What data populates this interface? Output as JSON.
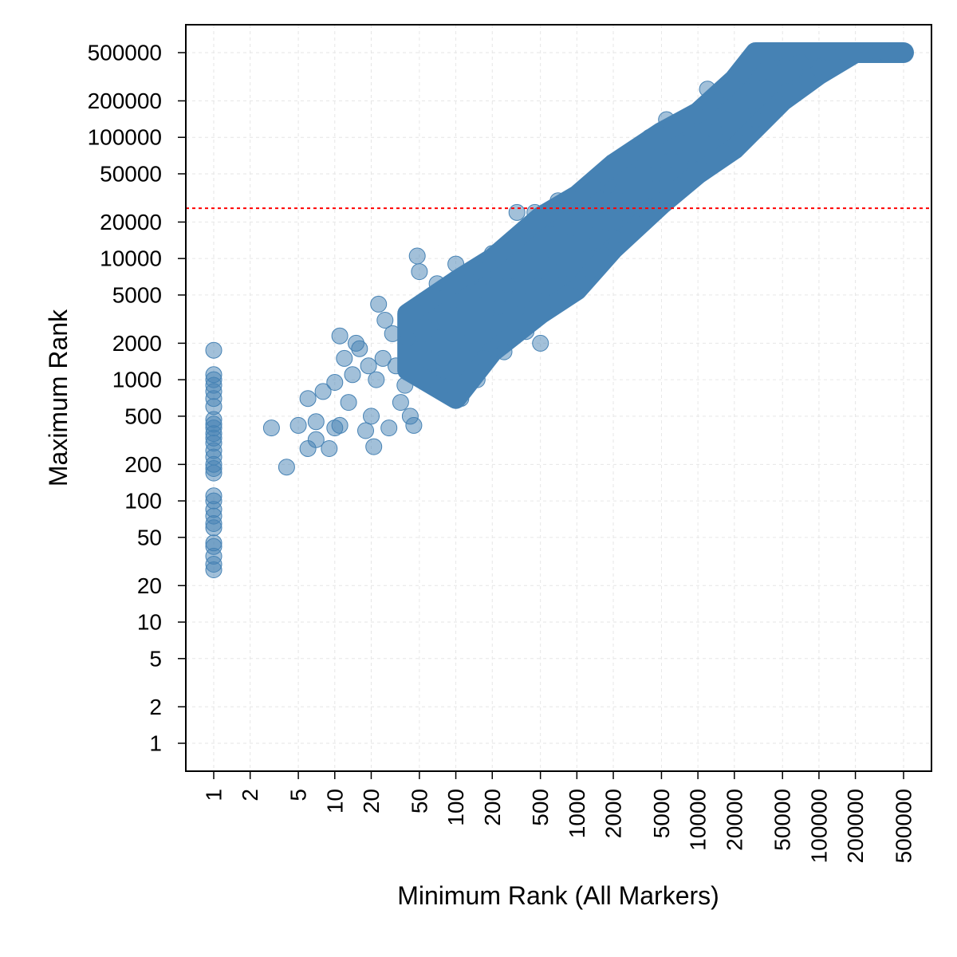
{
  "chart_data": {
    "type": "scatter",
    "title": "",
    "xlabel": "Minimum Rank (All Markers)",
    "ylabel": "Maximum Rank",
    "x_scale": "log",
    "y_scale": "log",
    "xlim": [
      0.8,
      750000
    ],
    "ylim": [
      0.5,
      800000
    ],
    "grid": true,
    "legend": "none",
    "x_ticks": [
      1,
      2,
      5,
      10,
      20,
      50,
      100,
      200,
      500,
      1000,
      2000,
      5000,
      10000,
      20000,
      50000,
      100000,
      200000,
      500000
    ],
    "x_tick_labels": [
      "1",
      "2",
      "5",
      "10",
      "20",
      "50",
      "100",
      "200",
      "500",
      "1000",
      "2000",
      "5000",
      "10000",
      "20000",
      "50000",
      "100000",
      "200000",
      "500000"
    ],
    "y_ticks": [
      1,
      2,
      5,
      10,
      20,
      50,
      100,
      200,
      500,
      1000,
      2000,
      5000,
      10000,
      20000,
      50000,
      100000,
      200000,
      500000
    ],
    "y_tick_labels": [
      "1",
      "2",
      "5",
      "10",
      "20",
      "50",
      "100",
      "200",
      "500",
      "1000",
      "2000",
      "5000",
      "10000",
      "20000",
      "50000",
      "100000",
      "200000",
      "500000"
    ],
    "point_color": "#4682b4",
    "reference_line": {
      "orientation": "horizontal",
      "y": 26000,
      "color": "#ff0000",
      "style": "dotted"
    },
    "series": [
      {
        "points": [
          [
            1,
            27
          ],
          [
            1,
            30
          ],
          [
            1,
            35
          ],
          [
            1,
            42
          ],
          [
            1,
            45
          ],
          [
            1,
            60
          ],
          [
            1,
            65
          ],
          [
            1,
            75
          ],
          [
            1,
            85
          ],
          [
            1,
            100
          ],
          [
            1,
            110
          ],
          [
            1,
            170
          ],
          [
            1,
            185
          ],
          [
            1,
            200
          ],
          [
            1,
            230
          ],
          [
            1,
            260
          ],
          [
            1,
            300
          ],
          [
            1,
            330
          ],
          [
            1,
            360
          ],
          [
            1,
            400
          ],
          [
            1,
            430
          ],
          [
            1,
            470
          ],
          [
            1,
            600
          ],
          [
            1,
            700
          ],
          [
            1,
            800
          ],
          [
            1,
            900
          ],
          [
            1,
            1000
          ],
          [
            1,
            1100
          ],
          [
            1,
            1750
          ],
          [
            3,
            400
          ],
          [
            4,
            190
          ],
          [
            5,
            420
          ],
          [
            6,
            270
          ],
          [
            6,
            700
          ],
          [
            7,
            320
          ],
          [
            7,
            450
          ],
          [
            8,
            800
          ],
          [
            9,
            270
          ],
          [
            10,
            400
          ],
          [
            10,
            950
          ],
          [
            11,
            420
          ],
          [
            11,
            2300
          ],
          [
            12,
            1500
          ],
          [
            13,
            650
          ],
          [
            14,
            1100
          ],
          [
            15,
            2000
          ],
          [
            16,
            1800
          ],
          [
            18,
            380
          ],
          [
            19,
            1300
          ],
          [
            20,
            500
          ],
          [
            21,
            280
          ],
          [
            22,
            1000
          ],
          [
            23,
            4200
          ],
          [
            25,
            1500
          ],
          [
            26,
            3100
          ],
          [
            28,
            400
          ],
          [
            30,
            2400
          ],
          [
            32,
            1300
          ],
          [
            35,
            650
          ],
          [
            38,
            900
          ],
          [
            40,
            2200
          ],
          [
            42,
            500
          ],
          [
            45,
            420
          ],
          [
            48,
            10500
          ],
          [
            50,
            7800
          ],
          [
            52,
            1800
          ],
          [
            55,
            3600
          ],
          [
            58,
            1000
          ],
          [
            60,
            2600
          ],
          [
            65,
            1400
          ],
          [
            70,
            6200
          ],
          [
            75,
            3000
          ],
          [
            80,
            2200
          ],
          [
            90,
            900
          ],
          [
            95,
            4500
          ],
          [
            100,
            9000
          ],
          [
            110,
            700
          ],
          [
            120,
            2000
          ],
          [
            130,
            6500
          ],
          [
            140,
            3500
          ],
          [
            150,
            1000
          ],
          [
            160,
            5500
          ],
          [
            170,
            1500
          ],
          [
            180,
            8000
          ],
          [
            190,
            3000
          ],
          [
            200,
            11000
          ],
          [
            210,
            1800
          ],
          [
            230,
            4000
          ],
          [
            250,
            1700
          ],
          [
            270,
            6000
          ],
          [
            300,
            2300
          ],
          [
            320,
            24000
          ],
          [
            350,
            4500
          ],
          [
            380,
            2500
          ],
          [
            400,
            12000
          ],
          [
            420,
            3800
          ],
          [
            450,
            24000
          ],
          [
            480,
            6000
          ],
          [
            500,
            2000
          ],
          [
            550,
            9000
          ],
          [
            600,
            16000
          ],
          [
            650,
            4500
          ],
          [
            700,
            30000
          ],
          [
            750,
            8000
          ],
          [
            800,
            5200
          ],
          [
            900,
            18000
          ],
          [
            1000,
            6500
          ],
          [
            1100,
            32000
          ],
          [
            1200,
            13000
          ],
          [
            1300,
            8000
          ],
          [
            1500,
            20000
          ],
          [
            1600,
            11000
          ],
          [
            1800,
            40000
          ],
          [
            2000,
            15000
          ],
          [
            2200,
            30000
          ],
          [
            2500,
            18000
          ],
          [
            2800,
            65000
          ],
          [
            3000,
            25000
          ],
          [
            3500,
            35000
          ],
          [
            4000,
            100000
          ],
          [
            4500,
            50000
          ],
          [
            5000,
            30000
          ],
          [
            5500,
            140000
          ],
          [
            6000,
            65000
          ],
          [
            7000,
            40000
          ],
          [
            8000,
            90000
          ],
          [
            9000,
            55000
          ],
          [
            10000,
            150000
          ],
          [
            11000,
            70000
          ],
          [
            12000,
            250000
          ],
          [
            14000,
            110000
          ],
          [
            16000,
            75000
          ],
          [
            18000,
            190000
          ],
          [
            20000,
            130000
          ],
          [
            22000,
            90000
          ],
          [
            25000,
            320000
          ],
          [
            28000,
            200000
          ],
          [
            30000,
            140000
          ],
          [
            32000,
            480000
          ],
          [
            35000,
            260000
          ],
          [
            40000,
            180000
          ],
          [
            45000,
            500000
          ],
          [
            50000,
            350000
          ],
          [
            55000,
            240000
          ],
          [
            60000,
            500000
          ],
          [
            70000,
            420000
          ],
          [
            80000,
            300000
          ],
          [
            90000,
            500000
          ],
          [
            100000,
            380000
          ],
          [
            120000,
            500000
          ],
          [
            140000,
            460000
          ],
          [
            160000,
            500000
          ],
          [
            200000,
            500000
          ],
          [
            250000,
            500000
          ],
          [
            300000,
            500000
          ],
          [
            350000,
            500000
          ],
          [
            400000,
            500000
          ],
          [
            450000,
            500000
          ],
          [
            500000,
            500000
          ]
        ]
      }
    ],
    "dense_band": {
      "description_note": "",
      "x_range": [
        40,
        500000
      ],
      "lower_y": [
        [
          40,
          1200
        ],
        [
          100,
          700
        ],
        [
          200,
          1700
        ],
        [
          500,
          3500
        ],
        [
          1000,
          5500
        ],
        [
          2000,
          12000
        ],
        [
          5000,
          28000
        ],
        [
          10000,
          50000
        ],
        [
          20000,
          80000
        ],
        [
          50000,
          200000
        ],
        [
          100000,
          330000
        ],
        [
          200000,
          500000
        ],
        [
          500000,
          500000
        ]
      ],
      "upper_y": [
        [
          40,
          3500
        ],
        [
          100,
          6500
        ],
        [
          200,
          10000
        ],
        [
          500,
          22000
        ],
        [
          1000,
          33000
        ],
        [
          2000,
          60000
        ],
        [
          5000,
          110000
        ],
        [
          10000,
          160000
        ],
        [
          20000,
          300000
        ],
        [
          30000,
          500000
        ],
        [
          500000,
          500000
        ]
      ]
    }
  }
}
